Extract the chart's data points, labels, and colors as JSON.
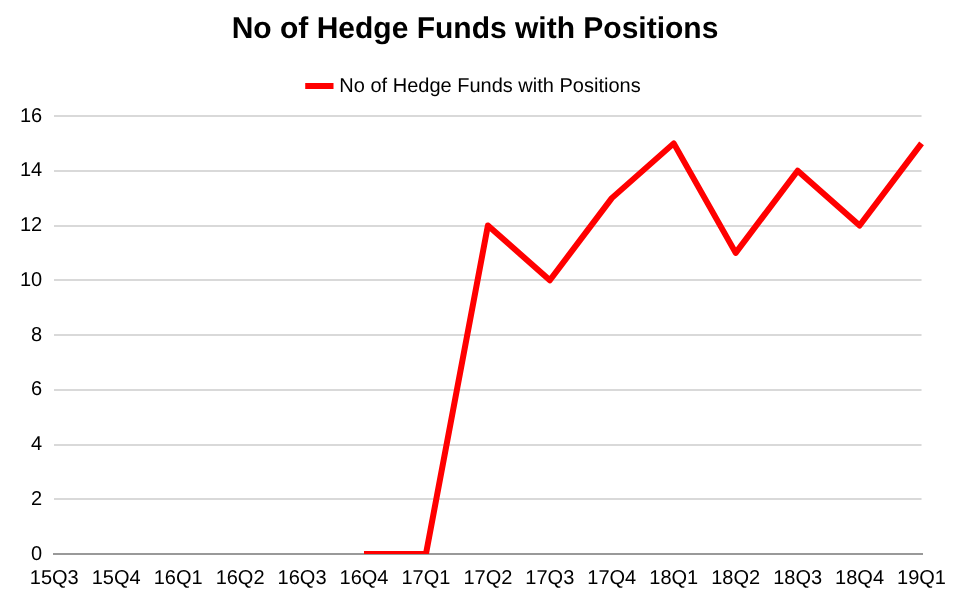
{
  "chart_data": {
    "type": "line",
    "title": "No of Hedge Funds with Positions",
    "categories": [
      "15Q3",
      "15Q4",
      "16Q1",
      "16Q2",
      "16Q3",
      "16Q4",
      "17Q1",
      "17Q2",
      "17Q3",
      "17Q4",
      "18Q1",
      "18Q2",
      "18Q3",
      "18Q4",
      "19Q1"
    ],
    "series": [
      {
        "name": "No of Hedge Funds with Positions",
        "color": "#ff0000",
        "values": [
          null,
          null,
          null,
          null,
          null,
          0,
          0,
          12,
          10,
          13,
          15,
          11,
          14,
          12,
          15
        ]
      }
    ],
    "ylim": [
      0,
      16
    ],
    "yticks": [
      0,
      2,
      4,
      6,
      8,
      10,
      12,
      14,
      16
    ],
    "grid": "y",
    "legend": "top",
    "marker": "none",
    "line_style": "solid"
  }
}
